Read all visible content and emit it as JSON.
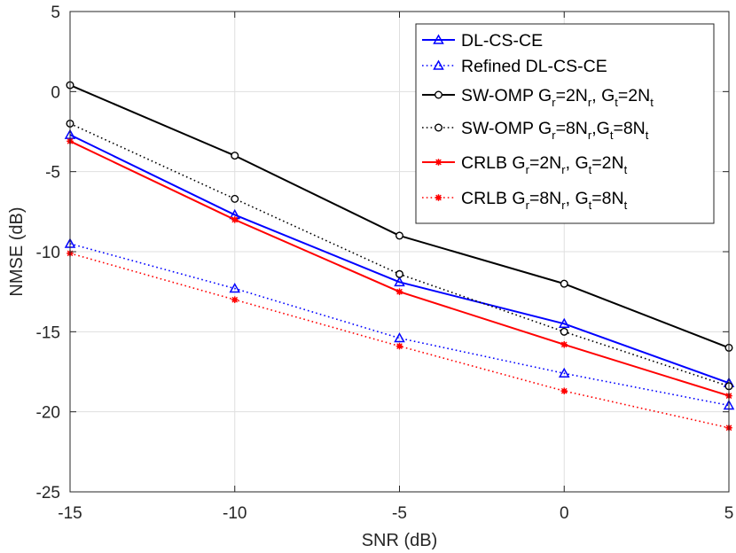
{
  "chart_data": {
    "type": "line",
    "title": "",
    "xlabel": "SNR (dB)",
    "ylabel": "NMSE (dB)",
    "xlim": [
      -15,
      5
    ],
    "ylim": [
      -25,
      5
    ],
    "x": [
      -15,
      -10,
      -5,
      0,
      5
    ],
    "xticks": [
      "-15",
      "-10",
      "-5",
      "0",
      "5"
    ],
    "yticks": [
      "5",
      "0",
      "-5",
      "-10",
      "-15",
      "-20",
      "-25"
    ],
    "grid": true,
    "legend_position": "top-right",
    "series": [
      {
        "name": "DL-CS-CE",
        "legend": [
          {
            "t": "DL-CS-CE"
          }
        ],
        "values": [
          -2.7,
          -7.7,
          -11.9,
          -14.5,
          -18.2
        ],
        "color": "#0000ff",
        "line": "solid",
        "marker": "triangle"
      },
      {
        "name": "Refined DL-CS-CE",
        "legend": [
          {
            "t": "Refined DL-CS-CE"
          }
        ],
        "values": [
          -9.5,
          -12.3,
          -15.4,
          -17.6,
          -19.6
        ],
        "color": "#0000ff",
        "line": "dotted",
        "marker": "triangle"
      },
      {
        "name": "SW-OMP Gr=2Nr, Gt=2Nt",
        "legend": [
          {
            "t": "SW-OMP G"
          },
          {
            "t": "r",
            "sub": true
          },
          {
            "t": "=2N"
          },
          {
            "t": "r",
            "sub": true
          },
          {
            "t": ", G"
          },
          {
            "t": "t",
            "sub": true
          },
          {
            "t": "=2N"
          },
          {
            "t": "t",
            "sub": true
          }
        ],
        "values": [
          0.4,
          -4.0,
          -9.0,
          -12.0,
          -16.0
        ],
        "color": "#000000",
        "line": "solid",
        "marker": "circle"
      },
      {
        "name": "SW-OMP Gr=8Nr,Gt=8Nt",
        "legend": [
          {
            "t": "SW-OMP G"
          },
          {
            "t": "r",
            "sub": true
          },
          {
            "t": "=8N"
          },
          {
            "t": "r",
            "sub": true
          },
          {
            "t": ",G"
          },
          {
            "t": "t",
            "sub": true
          },
          {
            "t": "=8N"
          },
          {
            "t": "t",
            "sub": true
          }
        ],
        "values": [
          -2.0,
          -6.7,
          -11.4,
          -15.0,
          -18.4
        ],
        "color": "#000000",
        "line": "dotted",
        "marker": "circle"
      },
      {
        "name": "CRLB Gr=2Nr, Gt=2Nt",
        "legend": [
          {
            "t": "CRLB G"
          },
          {
            "t": "r",
            "sub": true
          },
          {
            "t": "=2N"
          },
          {
            "t": "r",
            "sub": true
          },
          {
            "t": ", G"
          },
          {
            "t": "t",
            "sub": true
          },
          {
            "t": "=2N"
          },
          {
            "t": "t",
            "sub": true
          }
        ],
        "values": [
          -3.1,
          -8.0,
          -12.5,
          -15.8,
          -19.0
        ],
        "color": "#ff0000",
        "line": "solid",
        "marker": "star"
      },
      {
        "name": "CRLB Gr=8Nr, Gt=8Nt",
        "legend": [
          {
            "t": "CRLB G"
          },
          {
            "t": "r",
            "sub": true
          },
          {
            "t": "=8N"
          },
          {
            "t": "r",
            "sub": true
          },
          {
            "t": ", G"
          },
          {
            "t": "t",
            "sub": true
          },
          {
            "t": "=8N"
          },
          {
            "t": "t",
            "sub": true
          }
        ],
        "values": [
          -10.1,
          -13.0,
          -15.9,
          -18.7,
          -21.0
        ],
        "color": "#ff0000",
        "line": "dotted",
        "marker": "star"
      }
    ]
  }
}
